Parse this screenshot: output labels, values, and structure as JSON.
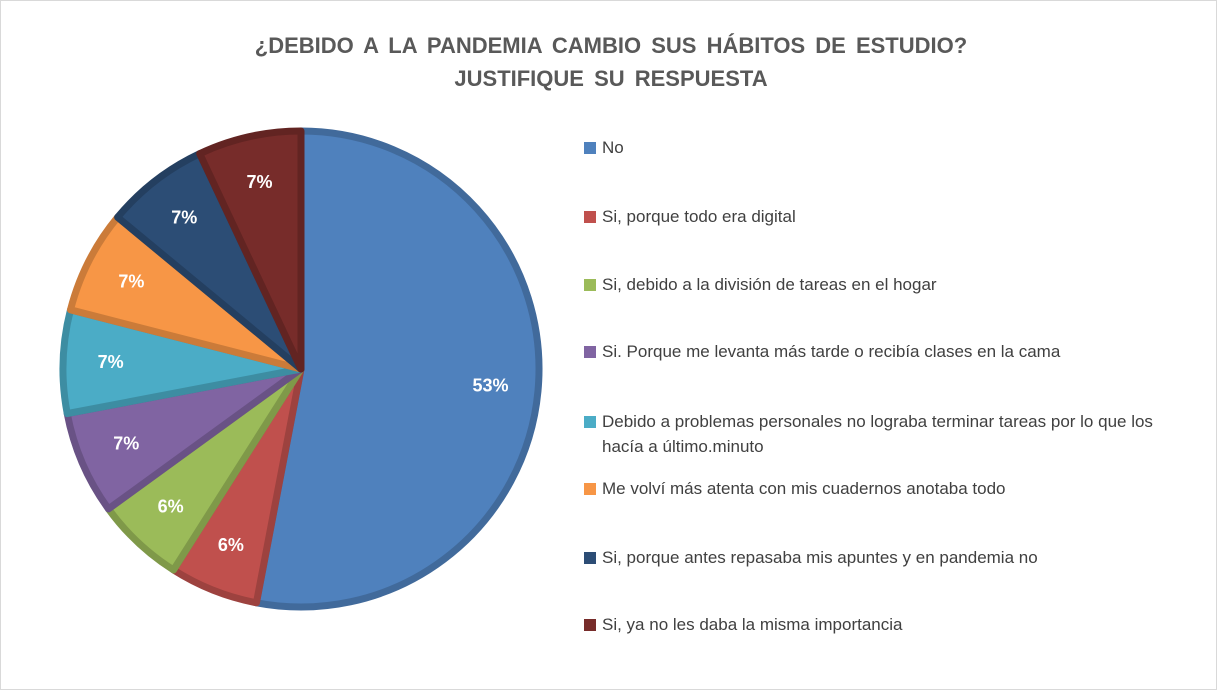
{
  "chart_data": {
    "type": "pie",
    "title": "¿DEBIDO A LA PANDEMIA CAMBIO SUS HÁBITOS DE ESTUDIO? JUSTIFIQUE SU RESPUESTA",
    "categories": [
      "No",
      "Si, porque todo era digital",
      "Si, debido a la división de tareas en el hogar",
      "Si. Porque me levanta más tarde o recibía clases en la cama",
      "Debido a problemas personales no lograba terminar tareas por lo que los hacía a último.minuto",
      "Me volví más atenta con mis cuadernos anotaba todo",
      "Si, porque antes repasaba mis apuntes y en pandemia no",
      "Si, ya no les daba la misma importancia"
    ],
    "values": [
      53,
      6,
      6,
      7,
      7,
      7,
      7,
      7
    ],
    "value_labels": [
      "53%",
      "6%",
      "6%",
      "7%",
      "7%",
      "7%",
      "7%",
      "7%"
    ],
    "colors": [
      "#4f81bd",
      "#c0504d",
      "#9bbb59",
      "#8064a2",
      "#4bacc6",
      "#f79646",
      "#2c4d75",
      "#772c2a"
    ],
    "legend": "right"
  }
}
